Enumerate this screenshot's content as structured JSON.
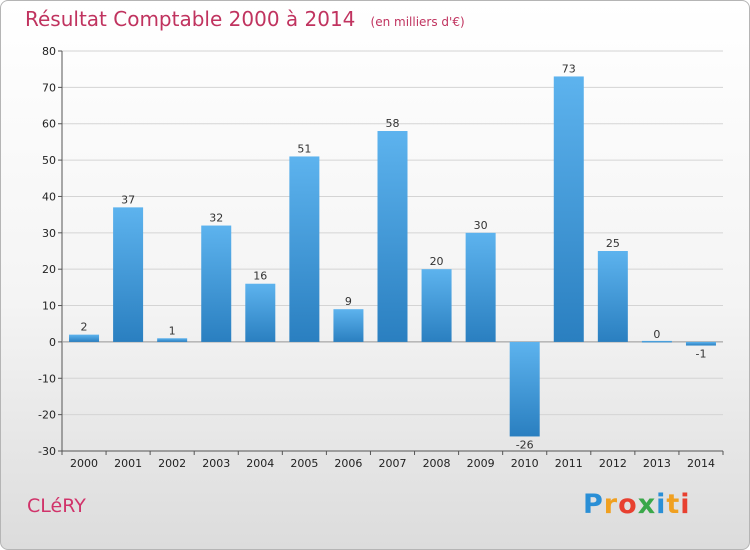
{
  "title": "Résultat Comptable 2000 à 2014",
  "subtitle": "(en milliers d'€)",
  "commune": "CLéRY",
  "logo": {
    "letters": [
      "P",
      "r",
      "o",
      "x",
      "i",
      "t",
      "i"
    ],
    "colors": [
      "#2a8fd6",
      "#f0a020",
      "#e84030",
      "#3aa84a",
      "#2a8fd6",
      "#f0a020",
      "#e84030"
    ]
  },
  "colors": {
    "title": "#c0335f",
    "bar_light": "#5db3ee",
    "bar_dark": "#2a7fc0",
    "grid": "#d4d4d4"
  },
  "chart_data": {
    "type": "bar",
    "title": "Résultat Comptable 2000 à 2014",
    "xlabel": "",
    "ylabel": "",
    "ylim": [
      -30,
      80
    ],
    "yticks": [
      -30,
      -20,
      -10,
      0,
      10,
      20,
      30,
      40,
      50,
      60,
      70,
      80
    ],
    "grid": true,
    "categories": [
      "2000",
      "2001",
      "2002",
      "2003",
      "2004",
      "2005",
      "2006",
      "2007",
      "2008",
      "2009",
      "2010",
      "2011",
      "2012",
      "2013",
      "2014"
    ],
    "values": [
      2,
      37,
      1,
      32,
      16,
      51,
      9,
      58,
      20,
      30,
      -26,
      73,
      25,
      0,
      -1
    ]
  }
}
